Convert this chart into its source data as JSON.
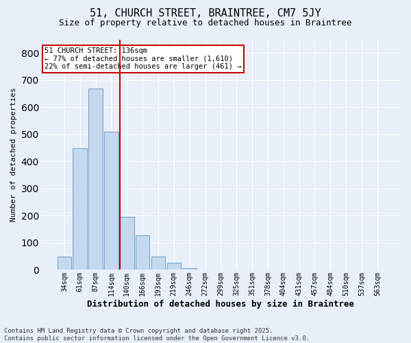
{
  "title1": "51, CHURCH STREET, BRAINTREE, CM7 5JY",
  "title2": "Size of property relative to detached houses in Braintree",
  "xlabel": "Distribution of detached houses by size in Braintree",
  "ylabel": "Number of detached properties",
  "categories": [
    "34sqm",
    "61sqm",
    "87sqm",
    "114sqm",
    "140sqm",
    "166sqm",
    "193sqm",
    "219sqm",
    "246sqm",
    "272sqm",
    "299sqm",
    "325sqm",
    "351sqm",
    "378sqm",
    "404sqm",
    "431sqm",
    "457sqm",
    "484sqm",
    "510sqm",
    "537sqm",
    "563sqm"
  ],
  "values": [
    50,
    450,
    670,
    510,
    195,
    128,
    50,
    27,
    5,
    2,
    2,
    0,
    0,
    0,
    0,
    0,
    0,
    0,
    0,
    0,
    0
  ],
  "bar_color": "#C5D8EE",
  "bar_edge_color": "#6BA3CD",
  "bar_width": 0.9,
  "vline_color": "#CC0000",
  "vline_pos": 3.55,
  "annotation_title": "51 CHURCH STREET: 136sqm",
  "annotation_line1": "← 77% of detached houses are smaller (1,610)",
  "annotation_line2": "22% of semi-detached houses are larger (461) →",
  "annotation_box_color": "#CC0000",
  "annotation_bg": "#FFFFFF",
  "ylim": [
    0,
    850
  ],
  "yticks": [
    0,
    100,
    200,
    300,
    400,
    500,
    600,
    700,
    800
  ],
  "footer1": "Contains HM Land Registry data © Crown copyright and database right 2025.",
  "footer2": "Contains public sector information licensed under the Open Government Licence v3.0.",
  "bg_color": "#E8EFF8",
  "plot_bg": "#E8EFF8",
  "grid_color": "#FFFFFF",
  "title1_fontsize": 11,
  "title2_fontsize": 9,
  "xlabel_fontsize": 9,
  "ylabel_fontsize": 8,
  "tick_fontsize": 7,
  "ann_fontsize": 7.5,
  "footer_fontsize": 6.5
}
